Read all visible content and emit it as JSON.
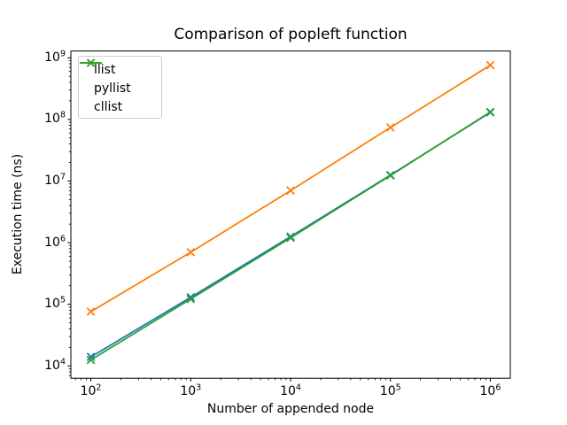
{
  "chart_data": {
    "type": "line",
    "title": "Comparison of popleft function",
    "xlabel": "Number of appended node",
    "ylabel": "Execution time (ns)",
    "x_scale": "log",
    "y_scale": "log",
    "grid": false,
    "legend_position": "upper left",
    "x": [
      100,
      1000,
      10000,
      100000,
      1000000
    ],
    "series": [
      {
        "name": "llist",
        "color": "#1f77b4",
        "marker": "x",
        "values": [
          14000,
          130000,
          1250000,
          12500000,
          130000000
        ]
      },
      {
        "name": "pyllist",
        "color": "#ff7f0e",
        "marker": "x",
        "values": [
          76000,
          700000,
          7000000,
          74000000,
          760000000
        ]
      },
      {
        "name": "cllist",
        "color": "#2ca02c",
        "marker": "x",
        "values": [
          12500,
          122000,
          1200000,
          12300000,
          132000000
        ]
      }
    ],
    "x_tick_exponents": [
      2,
      3,
      4,
      5,
      6
    ],
    "y_tick_exponents": [
      4,
      5,
      6,
      7,
      8,
      9
    ],
    "xlim_exp": [
      1.8,
      6.2
    ],
    "ylim_exp": [
      3.8,
      9.11
    ],
    "axes_color": "#000000",
    "background": "#ffffff"
  }
}
